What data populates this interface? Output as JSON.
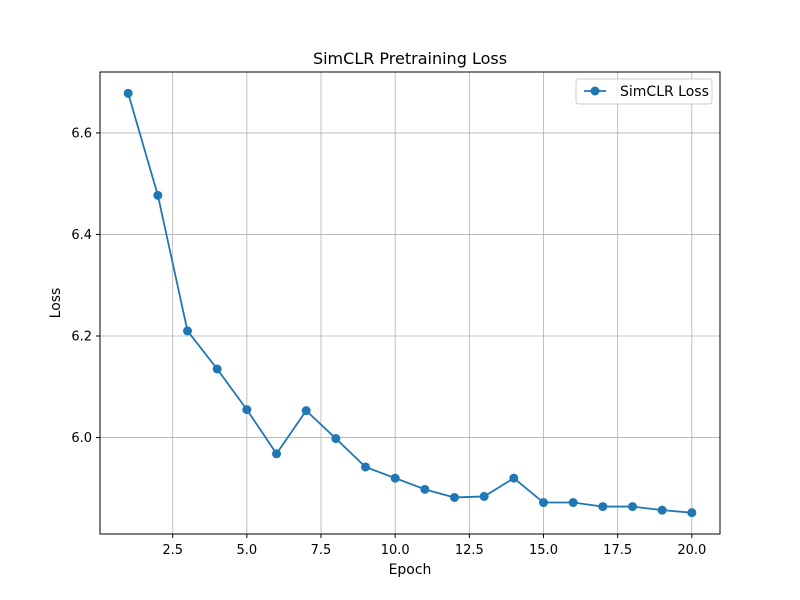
{
  "chart_data": {
    "type": "line",
    "title": "SimCLR Pretraining Loss",
    "xlabel": "Epoch",
    "ylabel": "Loss",
    "xlim": [
      0.05,
      20.95
    ],
    "ylim": [
      5.81,
      6.72
    ],
    "xticks": [
      2.5,
      5.0,
      7.5,
      10.0,
      12.5,
      15.0,
      17.5,
      20.0
    ],
    "xtick_labels": [
      "2.5",
      "5.0",
      "7.5",
      "10.0",
      "12.5",
      "15.0",
      "17.5",
      "20.0"
    ],
    "yticks": [
      6.0,
      6.2,
      6.4,
      6.6
    ],
    "ytick_labels": [
      "6.0",
      "6.2",
      "6.4",
      "6.6"
    ],
    "grid": true,
    "legend_position": "upper right",
    "series": [
      {
        "name": "SimCLR Loss",
        "color": "#1f77b4",
        "marker": "circle",
        "x": [
          1,
          2,
          3,
          4,
          5,
          6,
          7,
          8,
          9,
          10,
          11,
          12,
          13,
          14,
          15,
          16,
          17,
          18,
          19,
          20
        ],
        "y": [
          6.678,
          6.477,
          6.21,
          6.135,
          6.055,
          5.968,
          6.053,
          5.998,
          5.942,
          5.92,
          5.898,
          5.882,
          5.884,
          5.92,
          5.872,
          5.872,
          5.864,
          5.864,
          5.857,
          5.852
        ]
      }
    ]
  }
}
